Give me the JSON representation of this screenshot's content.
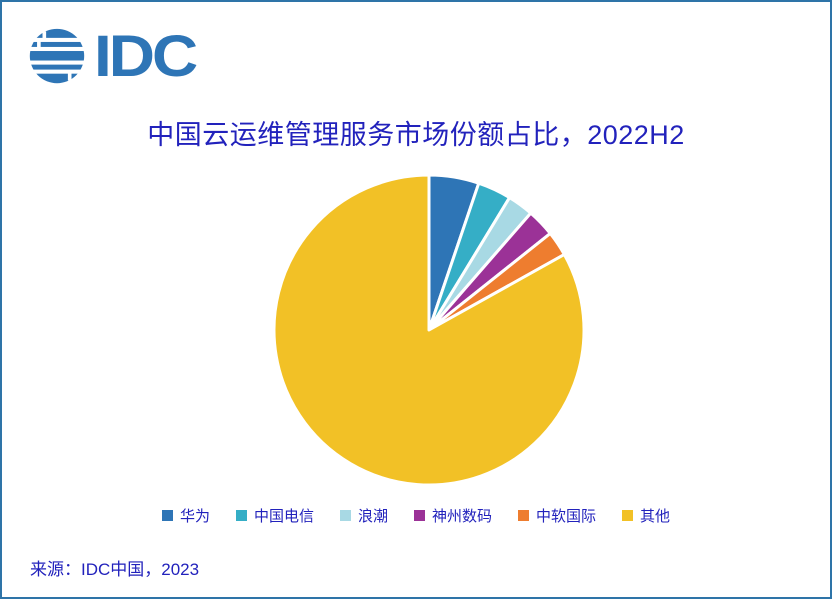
{
  "page": {
    "border_color": "#2E74A8",
    "background_color": "#FFFFFF",
    "text_color": "#2222BC"
  },
  "logo": {
    "text": "IDC",
    "color": "#2E75B6"
  },
  "title": {
    "text": "中国云运维管理服务市场份额占比，2022H2"
  },
  "chart_data": {
    "type": "pie",
    "title": "中国云运维管理服务市场份额占比，2022H2",
    "categories": [
      "华为",
      "中国电信",
      "浪潮",
      "神州数码",
      "中软国际",
      "其他"
    ],
    "values": [
      5.2,
      3.5,
      2.7,
      2.9,
      2.6,
      83.1
    ],
    "unit": "percent (estimated from slice angles, no data labels shown)",
    "colors": [
      "#2E75B6",
      "#35AEC6",
      "#A8D9E4",
      "#9B3297",
      "#EE7D2F",
      "#F2C126"
    ],
    "start_angle_deg": 0,
    "direction": "clockwise",
    "slice_border_color": "#FFFFFF",
    "legend_position": "bottom",
    "data_labels": false
  },
  "source": {
    "text": "来源：IDC中国，2023"
  }
}
